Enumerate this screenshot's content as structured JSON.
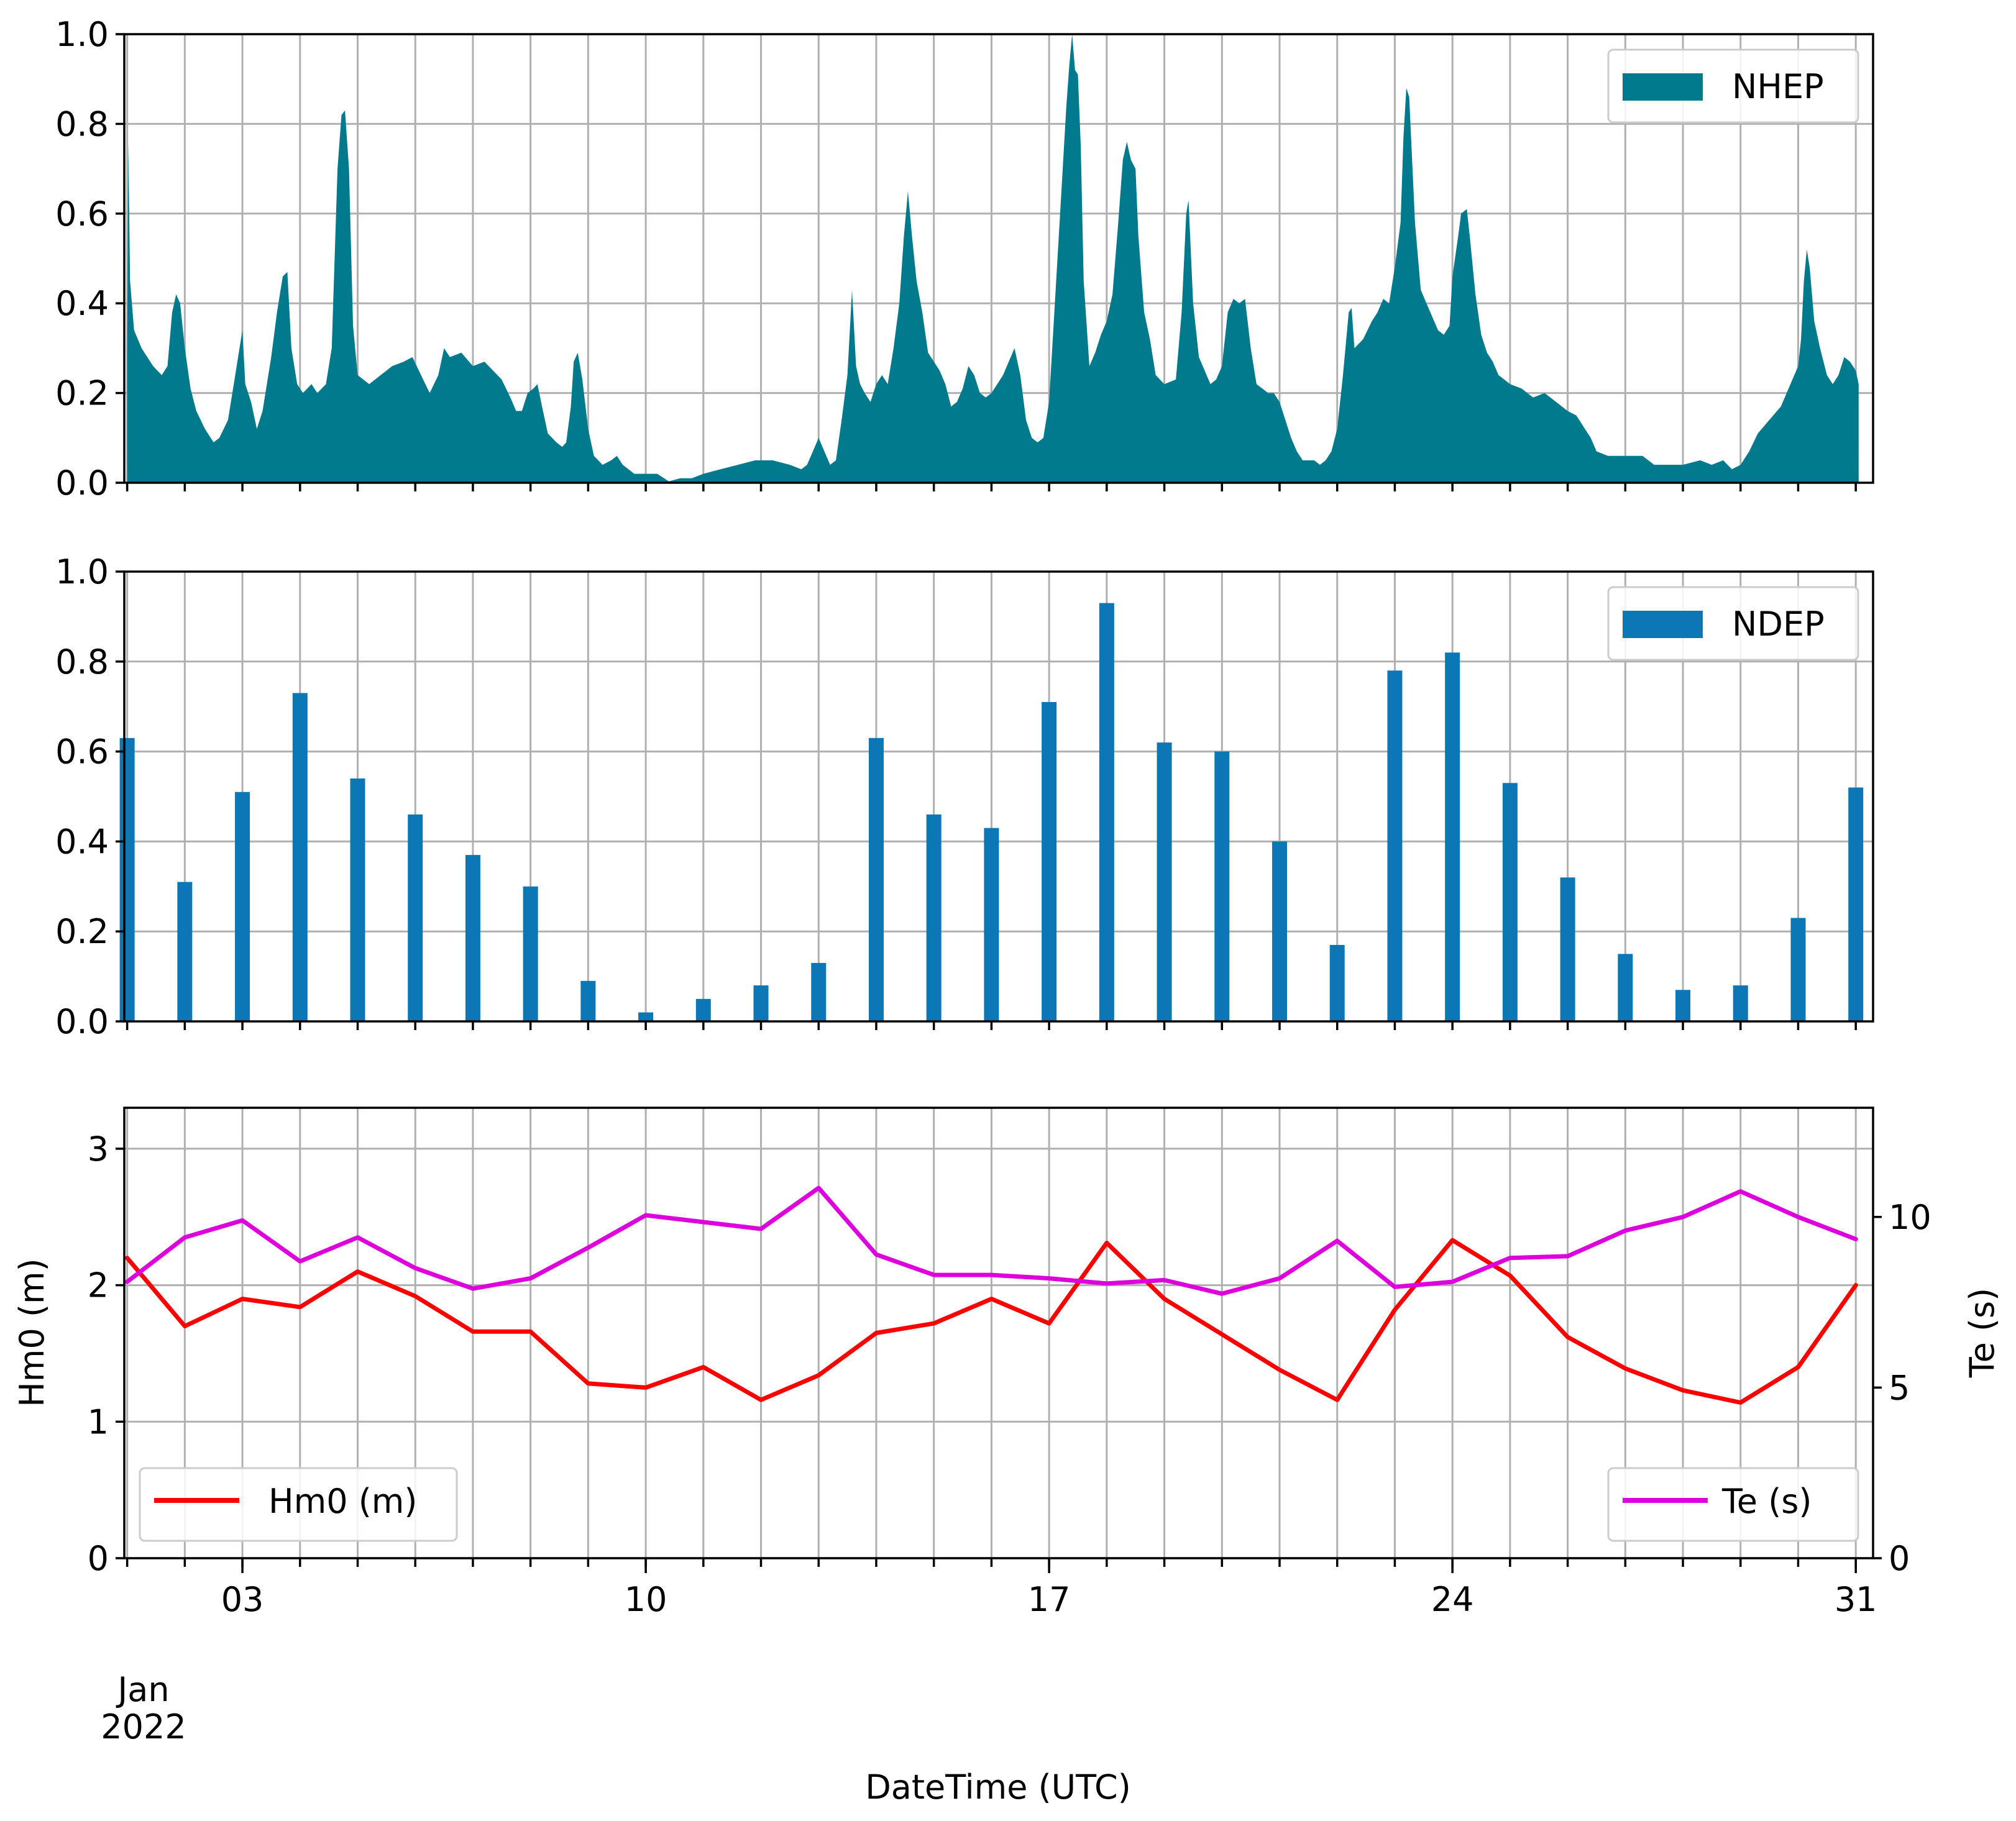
{
  "colors": {
    "nhep": "#017a8d",
    "ndep": "#0b77b5",
    "hm0": "#ff0000",
    "te": "#dd00dd"
  },
  "chart_data": [
    {
      "type": "area",
      "name": "NHEP",
      "legend": "NHEP",
      "legend_position": "top-right",
      "ylim": [
        0,
        1.0
      ],
      "yticks": [
        "0.0",
        "0.2",
        "0.4",
        "0.6",
        "0.8",
        "1.0"
      ],
      "xlim_days": [
        0.95,
        31.3
      ],
      "grid": true,
      "shared_x": true,
      "points": [
        [
          1.0,
          0.28
        ],
        [
          1.02,
          0.76
        ],
        [
          1.05,
          0.45
        ],
        [
          1.12,
          0.34
        ],
        [
          1.25,
          0.3
        ],
        [
          1.45,
          0.26
        ],
        [
          1.6,
          0.24
        ],
        [
          1.7,
          0.26
        ],
        [
          1.78,
          0.38
        ],
        [
          1.85,
          0.42
        ],
        [
          1.92,
          0.4
        ],
        [
          2.0,
          0.3
        ],
        [
          2.1,
          0.21
        ],
        [
          2.2,
          0.16
        ],
        [
          2.35,
          0.12
        ],
        [
          2.5,
          0.09
        ],
        [
          2.6,
          0.1
        ],
        [
          2.75,
          0.14
        ],
        [
          2.85,
          0.22
        ],
        [
          2.95,
          0.3
        ],
        [
          3.0,
          0.34
        ],
        [
          3.05,
          0.22
        ],
        [
          3.15,
          0.18
        ],
        [
          3.25,
          0.12
        ],
        [
          3.35,
          0.16
        ],
        [
          3.5,
          0.28
        ],
        [
          3.6,
          0.38
        ],
        [
          3.7,
          0.46
        ],
        [
          3.78,
          0.47
        ],
        [
          3.85,
          0.3
        ],
        [
          3.95,
          0.22
        ],
        [
          4.05,
          0.2
        ],
        [
          4.2,
          0.22
        ],
        [
          4.3,
          0.2
        ],
        [
          4.45,
          0.22
        ],
        [
          4.55,
          0.3
        ],
        [
          4.65,
          0.7
        ],
        [
          4.72,
          0.82
        ],
        [
          4.78,
          0.83
        ],
        [
          4.85,
          0.7
        ],
        [
          4.92,
          0.35
        ],
        [
          5.0,
          0.24
        ],
        [
          5.2,
          0.22
        ],
        [
          5.4,
          0.24
        ],
        [
          5.6,
          0.26
        ],
        [
          5.8,
          0.27
        ],
        [
          5.95,
          0.28
        ],
        [
          6.1,
          0.24
        ],
        [
          6.25,
          0.2
        ],
        [
          6.4,
          0.24
        ],
        [
          6.5,
          0.3
        ],
        [
          6.6,
          0.28
        ],
        [
          6.8,
          0.29
        ],
        [
          7.0,
          0.26
        ],
        [
          7.2,
          0.27
        ],
        [
          7.35,
          0.25
        ],
        [
          7.5,
          0.23
        ],
        [
          7.65,
          0.19
        ],
        [
          7.75,
          0.16
        ],
        [
          7.85,
          0.16
        ],
        [
          7.95,
          0.2
        ],
        [
          8.05,
          0.21
        ],
        [
          8.12,
          0.22
        ],
        [
          8.2,
          0.17
        ],
        [
          8.3,
          0.11
        ],
        [
          8.45,
          0.09
        ],
        [
          8.55,
          0.08
        ],
        [
          8.62,
          0.09
        ],
        [
          8.7,
          0.17
        ],
        [
          8.75,
          0.27
        ],
        [
          8.82,
          0.29
        ],
        [
          8.9,
          0.23
        ],
        [
          9.0,
          0.12
        ],
        [
          9.1,
          0.06
        ],
        [
          9.25,
          0.04
        ],
        [
          9.4,
          0.05
        ],
        [
          9.5,
          0.06
        ],
        [
          9.6,
          0.04
        ],
        [
          9.8,
          0.02
        ],
        [
          10.0,
          0.02
        ],
        [
          10.2,
          0.02
        ],
        [
          10.4,
          0.003
        ],
        [
          10.6,
          0.01
        ],
        [
          10.8,
          0.01
        ],
        [
          11.0,
          0.02
        ],
        [
          11.3,
          0.03
        ],
        [
          11.6,
          0.04
        ],
        [
          11.9,
          0.05
        ],
        [
          12.2,
          0.05
        ],
        [
          12.5,
          0.04
        ],
        [
          12.7,
          0.03
        ],
        [
          12.8,
          0.04
        ],
        [
          12.9,
          0.07
        ],
        [
          13.0,
          0.1
        ],
        [
          13.1,
          0.07
        ],
        [
          13.2,
          0.04
        ],
        [
          13.3,
          0.05
        ],
        [
          13.4,
          0.14
        ],
        [
          13.5,
          0.24
        ],
        [
          13.58,
          0.43
        ],
        [
          13.65,
          0.26
        ],
        [
          13.72,
          0.22
        ],
        [
          13.8,
          0.2
        ],
        [
          13.9,
          0.18
        ],
        [
          14.0,
          0.22
        ],
        [
          14.1,
          0.24
        ],
        [
          14.2,
          0.22
        ],
        [
          14.3,
          0.3
        ],
        [
          14.4,
          0.4
        ],
        [
          14.48,
          0.55
        ],
        [
          14.55,
          0.65
        ],
        [
          14.62,
          0.55
        ],
        [
          14.7,
          0.45
        ],
        [
          14.8,
          0.38
        ],
        [
          14.9,
          0.29
        ],
        [
          15.0,
          0.27
        ],
        [
          15.1,
          0.25
        ],
        [
          15.2,
          0.22
        ],
        [
          15.3,
          0.17
        ],
        [
          15.4,
          0.18
        ],
        [
          15.5,
          0.21
        ],
        [
          15.6,
          0.26
        ],
        [
          15.7,
          0.24
        ],
        [
          15.8,
          0.2
        ],
        [
          15.9,
          0.19
        ],
        [
          16.0,
          0.2
        ],
        [
          16.1,
          0.22
        ],
        [
          16.2,
          0.24
        ],
        [
          16.3,
          0.27
        ],
        [
          16.4,
          0.3
        ],
        [
          16.5,
          0.24
        ],
        [
          16.6,
          0.14
        ],
        [
          16.7,
          0.1
        ],
        [
          16.8,
          0.09
        ],
        [
          16.9,
          0.1
        ],
        [
          17.0,
          0.18
        ],
        [
          17.1,
          0.4
        ],
        [
          17.2,
          0.62
        ],
        [
          17.3,
          0.84
        ],
        [
          17.35,
          0.93
        ],
        [
          17.4,
          1.0
        ],
        [
          17.45,
          0.92
        ],
        [
          17.5,
          0.91
        ],
        [
          17.55,
          0.75
        ],
        [
          17.6,
          0.45
        ],
        [
          17.7,
          0.26
        ],
        [
          17.8,
          0.29
        ],
        [
          17.9,
          0.33
        ],
        [
          18.0,
          0.36
        ],
        [
          18.1,
          0.42
        ],
        [
          18.2,
          0.58
        ],
        [
          18.28,
          0.72
        ],
        [
          18.35,
          0.76
        ],
        [
          18.42,
          0.72
        ],
        [
          18.5,
          0.7
        ],
        [
          18.55,
          0.55
        ],
        [
          18.65,
          0.38
        ],
        [
          18.75,
          0.32
        ],
        [
          18.85,
          0.24
        ],
        [
          19.0,
          0.22
        ],
        [
          19.2,
          0.23
        ],
        [
          19.3,
          0.38
        ],
        [
          19.38,
          0.6
        ],
        [
          19.42,
          0.63
        ],
        [
          19.5,
          0.4
        ],
        [
          19.6,
          0.28
        ],
        [
          19.7,
          0.25
        ],
        [
          19.8,
          0.22
        ],
        [
          19.9,
          0.23
        ],
        [
          20.0,
          0.26
        ],
        [
          20.1,
          0.38
        ],
        [
          20.2,
          0.41
        ],
        [
          20.3,
          0.4
        ],
        [
          20.4,
          0.41
        ],
        [
          20.5,
          0.3
        ],
        [
          20.6,
          0.22
        ],
        [
          20.7,
          0.21
        ],
        [
          20.8,
          0.2
        ],
        [
          20.9,
          0.2
        ],
        [
          21.0,
          0.18
        ],
        [
          21.1,
          0.14
        ],
        [
          21.2,
          0.1
        ],
        [
          21.3,
          0.07
        ],
        [
          21.4,
          0.05
        ],
        [
          21.5,
          0.05
        ],
        [
          21.6,
          0.05
        ],
        [
          21.7,
          0.04
        ],
        [
          21.8,
          0.05
        ],
        [
          21.9,
          0.07
        ],
        [
          22.0,
          0.12
        ],
        [
          22.1,
          0.24
        ],
        [
          22.2,
          0.38
        ],
        [
          22.25,
          0.39
        ],
        [
          22.3,
          0.3
        ],
        [
          22.45,
          0.32
        ],
        [
          22.6,
          0.36
        ],
        [
          22.7,
          0.38
        ],
        [
          22.8,
          0.41
        ],
        [
          22.9,
          0.4
        ],
        [
          23.0,
          0.48
        ],
        [
          23.1,
          0.58
        ],
        [
          23.15,
          0.77
        ],
        [
          23.2,
          0.88
        ],
        [
          23.25,
          0.86
        ],
        [
          23.35,
          0.58
        ],
        [
          23.45,
          0.43
        ],
        [
          23.55,
          0.4
        ],
        [
          23.65,
          0.37
        ],
        [
          23.75,
          0.34
        ],
        [
          23.85,
          0.33
        ],
        [
          23.95,
          0.35
        ],
        [
          24.0,
          0.46
        ],
        [
          24.1,
          0.55
        ],
        [
          24.15,
          0.6
        ],
        [
          24.25,
          0.61
        ],
        [
          24.3,
          0.55
        ],
        [
          24.4,
          0.42
        ],
        [
          24.5,
          0.33
        ],
        [
          24.6,
          0.29
        ],
        [
          24.7,
          0.27
        ],
        [
          24.8,
          0.24
        ],
        [
          24.9,
          0.23
        ],
        [
          25.0,
          0.22
        ],
        [
          25.2,
          0.21
        ],
        [
          25.4,
          0.19
        ],
        [
          25.6,
          0.2
        ],
        [
          25.8,
          0.18
        ],
        [
          26.0,
          0.16
        ],
        [
          26.15,
          0.15
        ],
        [
          26.3,
          0.12
        ],
        [
          26.4,
          0.1
        ],
        [
          26.5,
          0.07
        ],
        [
          26.7,
          0.06
        ],
        [
          27.0,
          0.06
        ],
        [
          27.3,
          0.06
        ],
        [
          27.5,
          0.04
        ],
        [
          27.8,
          0.04
        ],
        [
          28.0,
          0.04
        ],
        [
          28.3,
          0.05
        ],
        [
          28.5,
          0.04
        ],
        [
          28.7,
          0.05
        ],
        [
          28.85,
          0.03
        ],
        [
          29.0,
          0.04
        ],
        [
          29.15,
          0.07
        ],
        [
          29.3,
          0.11
        ],
        [
          29.5,
          0.14
        ],
        [
          29.7,
          0.17
        ],
        [
          29.9,
          0.23
        ],
        [
          30.0,
          0.26
        ],
        [
          30.05,
          0.32
        ],
        [
          30.1,
          0.45
        ],
        [
          30.15,
          0.52
        ],
        [
          30.2,
          0.48
        ],
        [
          30.28,
          0.36
        ],
        [
          30.38,
          0.3
        ],
        [
          30.5,
          0.24
        ],
        [
          30.6,
          0.22
        ],
        [
          30.7,
          0.24
        ],
        [
          30.8,
          0.28
        ],
        [
          30.9,
          0.27
        ],
        [
          31.0,
          0.25
        ],
        [
          31.05,
          0.22
        ]
      ]
    },
    {
      "type": "bar",
      "name": "NDEP",
      "legend": "NDEP",
      "legend_position": "top-right",
      "ylim": [
        0,
        1.0
      ],
      "yticks": [
        "0.0",
        "0.2",
        "0.4",
        "0.6",
        "0.8",
        "1.0"
      ],
      "xlim_days": [
        0.95,
        31.3
      ],
      "grid": true,
      "shared_x": true,
      "x_days": [
        1,
        2,
        3,
        4,
        5,
        6,
        7,
        8,
        9,
        10,
        11,
        12,
        13,
        14,
        15,
        16,
        17,
        18,
        19,
        20,
        21,
        22,
        23,
        24,
        25,
        26,
        27,
        28,
        29,
        30,
        31
      ],
      "values": [
        0.63,
        0.31,
        0.51,
        0.73,
        0.54,
        0.46,
        0.37,
        0.3,
        0.09,
        0.02,
        0.05,
        0.08,
        0.13,
        0.63,
        0.46,
        0.43,
        0.71,
        0.93,
        0.62,
        0.6,
        0.4,
        0.17,
        0.78,
        0.82,
        0.53,
        0.32,
        0.15,
        0.07,
        0.08,
        0.23,
        0.52
      ]
    },
    {
      "type": "line",
      "name": "Hm0 and Te",
      "xlabel": "DateTime (UTC)",
      "xticks": [
        {
          "day": 3,
          "label": "03"
        },
        {
          "day": 10,
          "label": "10"
        },
        {
          "day": 17,
          "label": "17"
        },
        {
          "day": 24,
          "label": "24"
        },
        {
          "day": 31,
          "label": "31"
        }
      ],
      "x_offset_label": [
        "Jan",
        "2022"
      ],
      "xlim_days": [
        0.95,
        31.3
      ],
      "left_axis": {
        "ylabel": "Hm0 (m)",
        "ylim": [
          0,
          3.3
        ],
        "yticks": [
          "0",
          "1",
          "2",
          "3"
        ],
        "series": {
          "name": "Hm0 (m)",
          "legend_position": "bottom-left",
          "x_days": [
            1,
            2,
            3,
            4,
            5,
            6,
            7,
            8,
            9,
            10,
            11,
            12,
            13,
            14,
            15,
            16,
            17,
            18,
            19,
            20,
            21,
            22,
            23,
            24,
            25,
            26,
            27,
            28,
            29,
            30,
            31
          ],
          "values": [
            2.2,
            1.7,
            1.9,
            1.84,
            2.1,
            1.92,
            1.66,
            1.66,
            1.28,
            1.25,
            1.4,
            1.16,
            1.34,
            1.65,
            1.72,
            1.9,
            1.72,
            2.31,
            1.9,
            1.64,
            1.38,
            1.16,
            1.82,
            2.33,
            2.07,
            1.62,
            1.39,
            1.23,
            1.14,
            1.4,
            2.0
          ]
        }
      },
      "right_axis": {
        "ylabel": "Te (s)",
        "ylim": [
          0,
          13.2
        ],
        "yticks": [
          "0",
          "5",
          "10"
        ],
        "series": {
          "name": "Te (s)",
          "legend_position": "bottom-right",
          "x_days": [
            1,
            2,
            3,
            4,
            5,
            6,
            7,
            8,
            9,
            10,
            11,
            12,
            13,
            14,
            15,
            16,
            17,
            18,
            19,
            20,
            21,
            22,
            23,
            24,
            25,
            26,
            27,
            28,
            29,
            30,
            31
          ],
          "values": [
            8.1,
            9.4,
            9.9,
            8.7,
            9.4,
            8.5,
            7.9,
            8.2,
            9.1,
            10.05,
            9.85,
            9.65,
            10.85,
            8.9,
            8.3,
            8.3,
            8.2,
            8.05,
            8.15,
            7.75,
            8.2,
            9.3,
            7.95,
            8.1,
            8.8,
            8.85,
            9.6,
            10.0,
            10.75,
            10.0,
            9.35
          ]
        }
      }
    }
  ]
}
